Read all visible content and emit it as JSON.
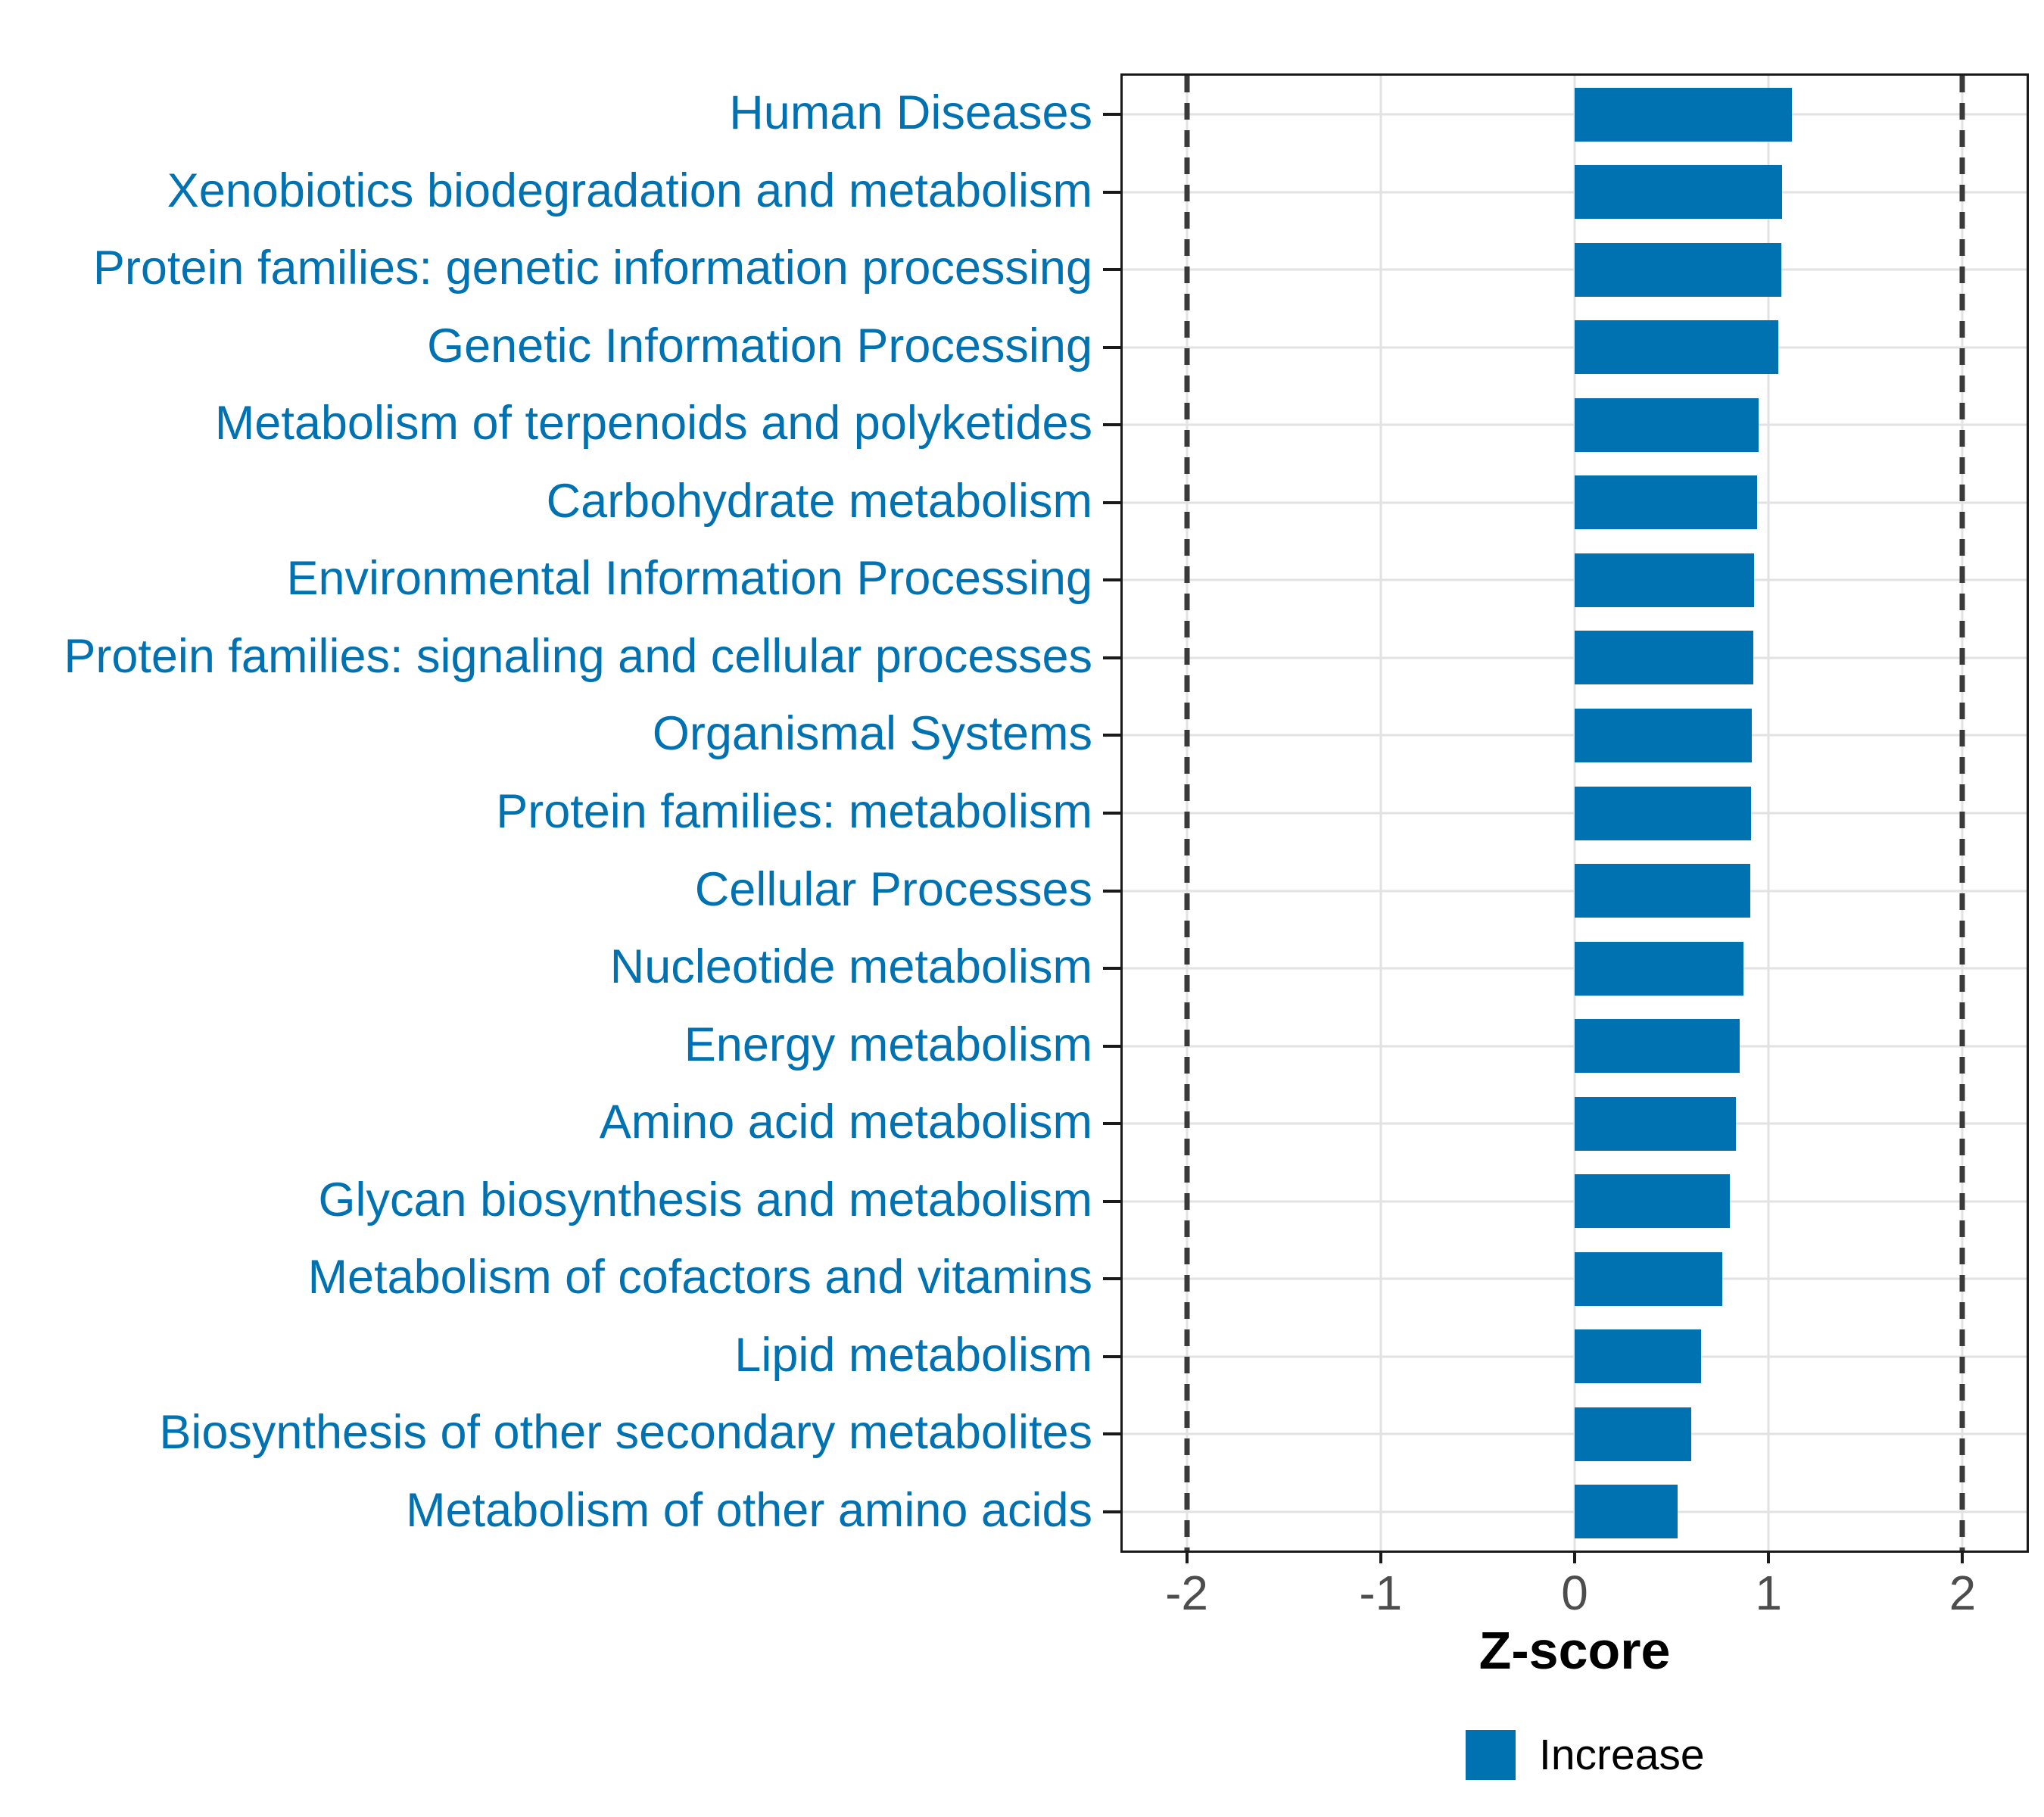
{
  "chart_data": {
    "type": "bar",
    "orientation": "horizontal",
    "title": "",
    "xlabel": "Z-score",
    "ylabel": "",
    "categories": [
      "Human Diseases",
      "Xenobiotics biodegradation and metabolism",
      "Protein families: genetic information processing",
      "Genetic Information Processing",
      "Metabolism of terpenoids and polyketides",
      "Carbohydrate metabolism",
      "Environmental Information Processing",
      "Protein families: signaling and cellular processes",
      "Organismal Systems",
      "Protein families: metabolism",
      "Cellular Processes",
      "Nucleotide metabolism",
      "Energy metabolism",
      "Amino acid metabolism",
      "Glycan biosynthesis and metabolism",
      "Metabolism of cofactors and vitamins",
      "Lipid metabolism",
      "Biosynthesis of other secondary metabolites",
      "Metabolism of other amino acids"
    ],
    "values": [
      1.12,
      1.07,
      1.065,
      1.05,
      0.95,
      0.94,
      0.925,
      0.92,
      0.915,
      0.91,
      0.905,
      0.87,
      0.85,
      0.83,
      0.8,
      0.76,
      0.65,
      0.6,
      0.53
    ],
    "xlim": [
      -2.33,
      2.33
    ],
    "x_ticks": [
      -2,
      -1,
      0,
      1,
      2
    ],
    "x_tick_labels": [
      "-2",
      "-1",
      "0",
      "1",
      "2"
    ],
    "reference_lines": [
      -2,
      2
    ],
    "grid": "major",
    "legend_position": "bottom-center",
    "legend": {
      "items": [
        {
          "label": "Increase",
          "color": "#0072B2"
        }
      ]
    },
    "colors": {
      "bar": "#0072B2",
      "category_label": "#0072B2",
      "tick_label": "#4D4D4D",
      "axis_title": "#000000",
      "gridline": "#E2E2E2",
      "panel_border": "#1A1A1A",
      "reference_line": "#3A3A3A",
      "background": "#FFFFFF"
    }
  }
}
